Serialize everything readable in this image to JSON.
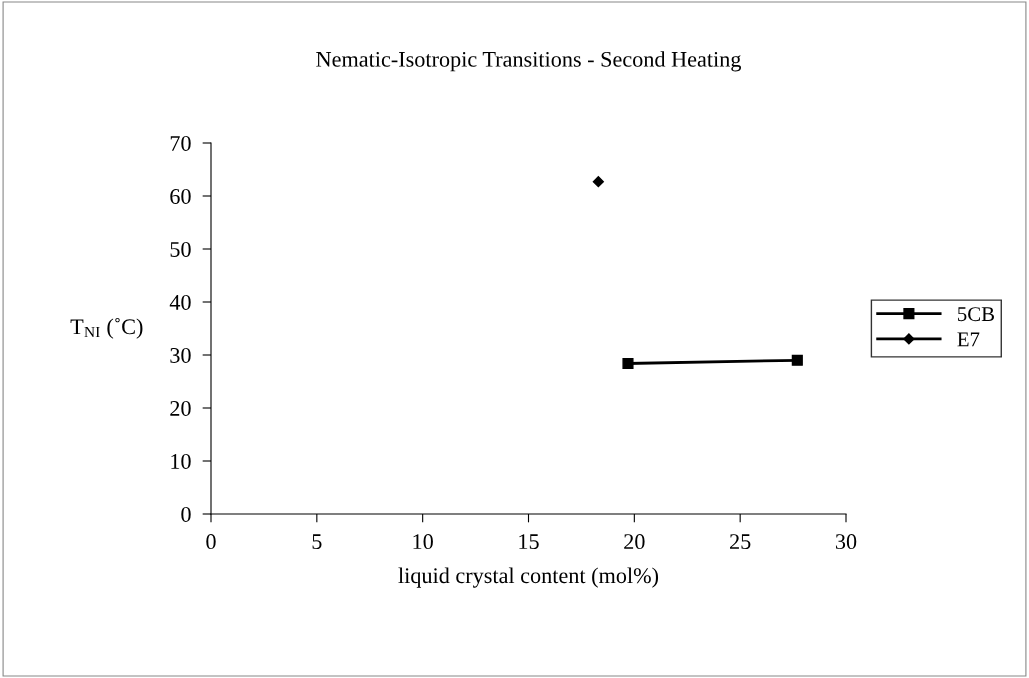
{
  "chart_data": {
    "type": "line",
    "title": "Nematic-Isotropic Transitions - Second Heating",
    "xlabel": "liquid crystal content (mol%)",
    "ylabel": "T$_{NI}$ (˚C)",
    "series": [
      {
        "name": "5CB",
        "color": "#000000",
        "marker": "square",
        "x": [
          19.7,
          27.7
        ],
        "values": [
          28.4,
          29.0
        ]
      },
      {
        "name": "E7",
        "color": "#000000",
        "marker": "diamond",
        "x": [
          18.3
        ],
        "values": [
          62.7
        ]
      }
    ],
    "xlim": [
      0,
      30
    ],
    "xticks": [
      0,
      5,
      10,
      15,
      20,
      25,
      30
    ],
    "ylim": [
      0,
      70
    ],
    "yticks": [
      0,
      10,
      20,
      30,
      40,
      50,
      60,
      70
    ],
    "grid": false,
    "legend": "right",
    "line_style": "solid"
  }
}
